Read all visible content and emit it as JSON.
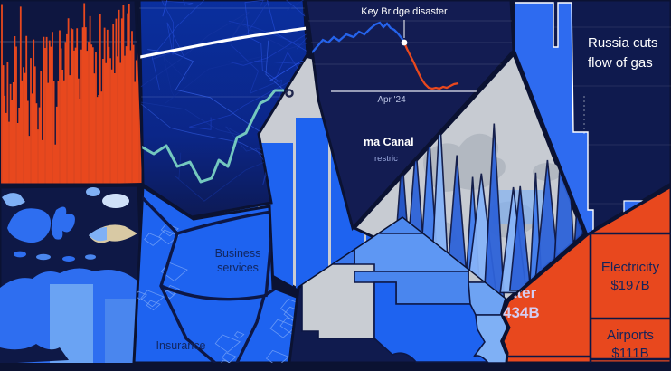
{
  "collage": {
    "key_bridge": {
      "annotation": "Key Bridge disaster",
      "x_tick": "Apr '24",
      "wedge_title": "ma Canal",
      "wedge_subtitle": "restric"
    },
    "russia": {
      "headline_1": "Russia cuts",
      "headline_2": "flow of gas"
    },
    "services_treemap": {
      "cell_1_line1": "Business",
      "cell_1_line2": "services",
      "cell_2": "Insurance"
    },
    "infrastructure_treemap": {
      "water_line1": "ater",
      "water_line2": "434B",
      "electricity_label": "Electricity",
      "electricity_value": "$197B",
      "airports_label": "Airports",
      "airports_value": "$111B"
    }
  },
  "colors": {
    "background_navy": "#0b1232",
    "panel_navy": "#111b52",
    "bright_blue": "#1e63f0",
    "orange": "#e8481e",
    "light_gray": "#c9ccd3",
    "teal": "#74c8bf",
    "white": "#ffffff",
    "label_lavender": "#d5cef2"
  },
  "chart_data": [
    {
      "type": "area",
      "id": "event-volume-spikes",
      "description": "dense orange spike/volume series on dark navy, one faint gridline, no labels visible"
    },
    {
      "type": "line",
      "id": "forecast-spaghetti",
      "description": "many thin blue simulation lines, rising thick white median line, teal path ending in a ring marker"
    },
    {
      "type": "line",
      "id": "key-bridge-traffic",
      "annotation": "Key Bridge disaster",
      "x_tick_labels": [
        "Apr '24"
      ],
      "series": [
        {
          "name": "pre-disaster (blue)",
          "values_relative": [
            38,
            48,
            55,
            60,
            57,
            62,
            58,
            65,
            62,
            68,
            70,
            75,
            77,
            73,
            76,
            72,
            69,
            64,
            58
          ]
        },
        {
          "name": "post-disaster (orange)",
          "values_relative": [
            52,
            44,
            35,
            26,
            18,
            10,
            5,
            3,
            4,
            3,
            5,
            6,
            7,
            8
          ]
        }
      ],
      "note": "no numeric axis shown; values estimated as percent of panel height"
    },
    {
      "type": "area",
      "id": "russia-gas-flow",
      "title": "Russia cuts flow of gas",
      "values_relative": [
        98,
        98,
        76,
        98,
        98,
        42,
        42,
        10,
        10,
        0,
        0,
        14,
        14,
        0
      ],
      "description": "step area at full level collapsing to near zero, small residual block at right"
    },
    {
      "type": "bar",
      "id": "center-bar-chart",
      "values_relative": [
        44,
        52,
        62,
        72,
        82,
        88,
        90
      ],
      "description": "blue bars on light gray background rising left to right, axis labels occluded"
    },
    {
      "type": "area",
      "id": "spike-map",
      "description": "tall blue outlined spikes over a gray basemap (spike map)"
    },
    {
      "type": "heatmap",
      "id": "oceania-choropleth",
      "description": "blue choropleth of maritime Southeast Asia / Australia with one tan region"
    },
    {
      "type": "table",
      "id": "services-voronoi-treemap",
      "cells": [
        "Business services",
        "Insurance"
      ]
    },
    {
      "type": "heatmap",
      "id": "us-states-choropleth",
      "description": "south-central US states in blue shades; New Mexico and Missouri gray"
    },
    {
      "type": "table",
      "id": "infrastructure-treemap",
      "cells": [
        {
          "label": "ater",
          "value": "434B",
          "note": "partially occluded"
        },
        {
          "label": "Electricity",
          "value": "$197B"
        },
        {
          "label": "Airports",
          "value": "$111B"
        }
      ]
    }
  ]
}
